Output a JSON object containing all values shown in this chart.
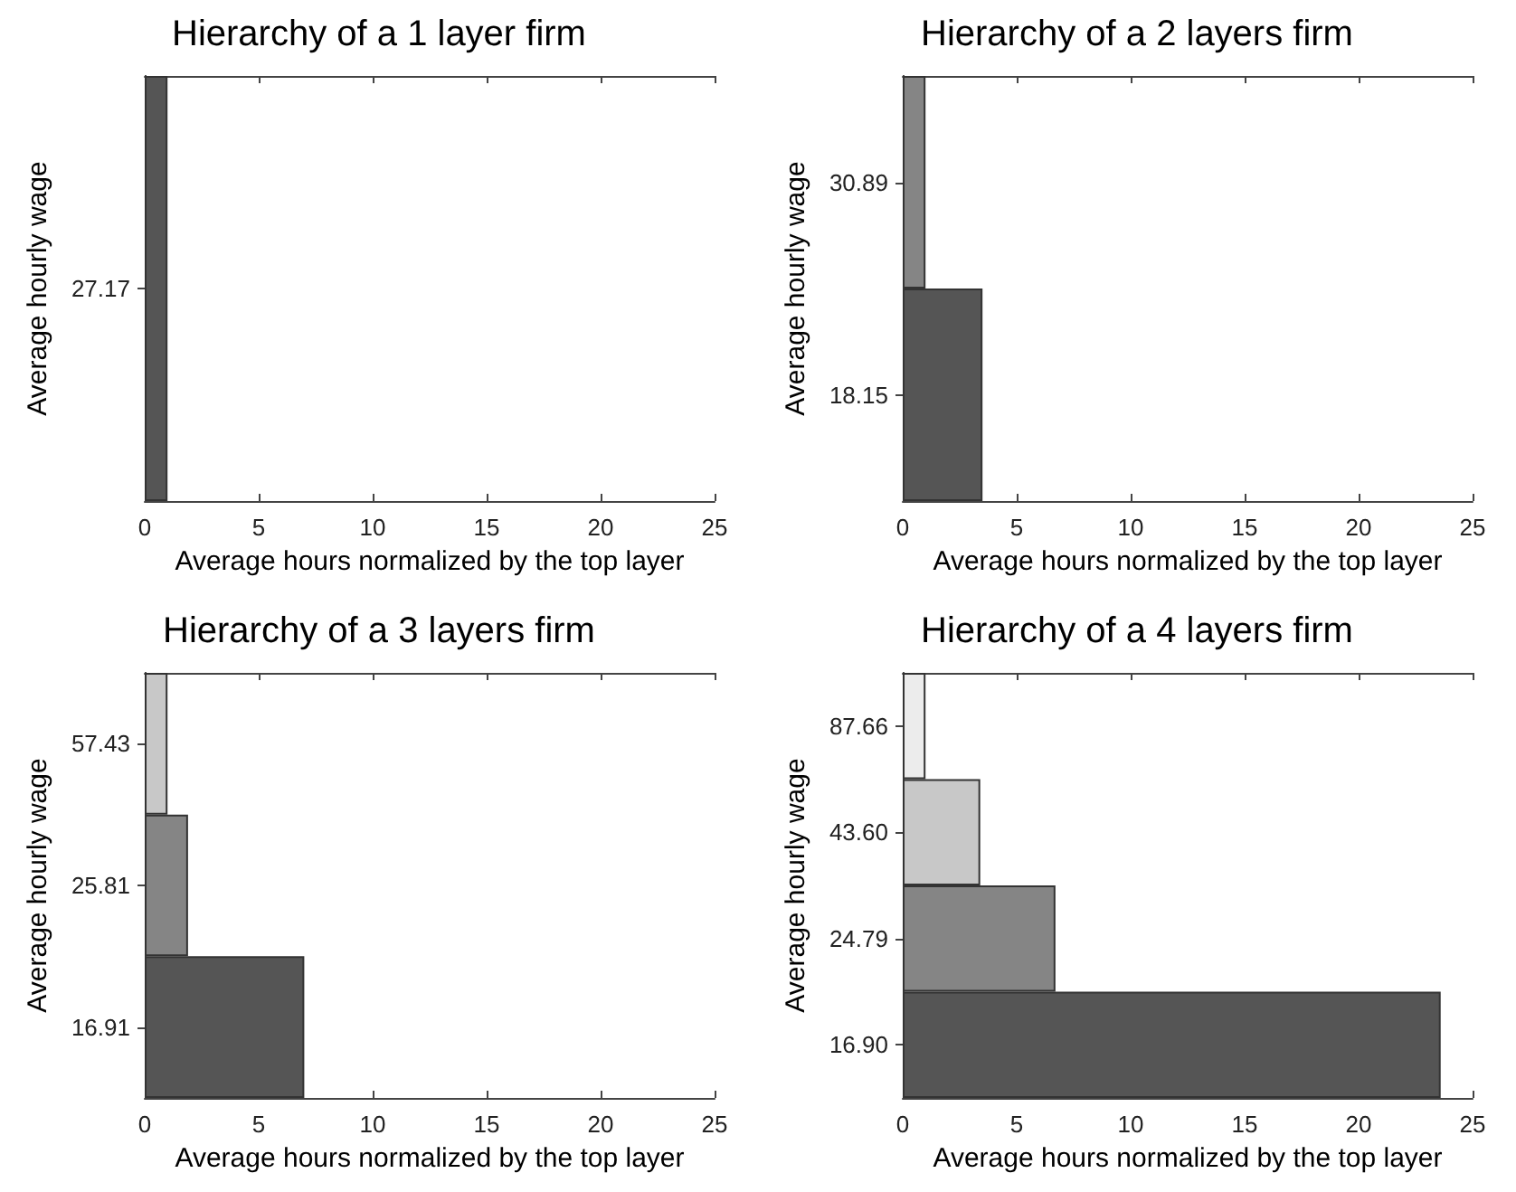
{
  "chart_data": [
    {
      "type": "bar",
      "orientation": "horizontal",
      "title": "Hierarchy of a 1 layer firm",
      "xlabel": "Average hours normalized by the top layer",
      "ylabel": "Average hourly wage",
      "categories": [
        "27.17"
      ],
      "values": [
        1.0
      ],
      "colors": [
        "#555555"
      ],
      "xlim": [
        0,
        25
      ],
      "xticks": [
        0,
        5,
        10,
        15,
        20,
        25
      ]
    },
    {
      "type": "bar",
      "orientation": "horizontal",
      "title": "Hierarchy of a 2 layers firm",
      "xlabel": "Average hours normalized by the top layer",
      "ylabel": "Average hourly wage",
      "categories": [
        "30.89",
        "18.15"
      ],
      "values": [
        1.0,
        3.5
      ],
      "colors": [
        "#858585",
        "#555555"
      ],
      "xlim": [
        0,
        25
      ],
      "xticks": [
        0,
        5,
        10,
        15,
        20,
        25
      ]
    },
    {
      "type": "bar",
      "orientation": "horizontal",
      "title": "Hierarchy of a 3 layers firm",
      "xlabel": "Average hours normalized by the top layer",
      "ylabel": "Average hourly wage",
      "categories": [
        "57.43",
        "25.81",
        "16.91"
      ],
      "values": [
        1.0,
        1.9,
        7.0
      ],
      "colors": [
        "#c8c8c8",
        "#858585",
        "#555555"
      ],
      "xlim": [
        0,
        25
      ],
      "xticks": [
        0,
        5,
        10,
        15,
        20,
        25
      ]
    },
    {
      "type": "bar",
      "orientation": "horizontal",
      "title": "Hierarchy of a 4 layers firm",
      "xlabel": "Average hours normalized by the top layer",
      "ylabel": "Average hourly wage",
      "categories": [
        "87.66",
        "43.60",
        "24.79",
        "16.90"
      ],
      "values": [
        1.0,
        3.4,
        6.7,
        23.6
      ],
      "colors": [
        "#ececec",
        "#c8c8c8",
        "#858585",
        "#555555"
      ],
      "xlim": [
        0,
        25
      ],
      "xticks": [
        0,
        5,
        10,
        15,
        20,
        25
      ]
    }
  ]
}
